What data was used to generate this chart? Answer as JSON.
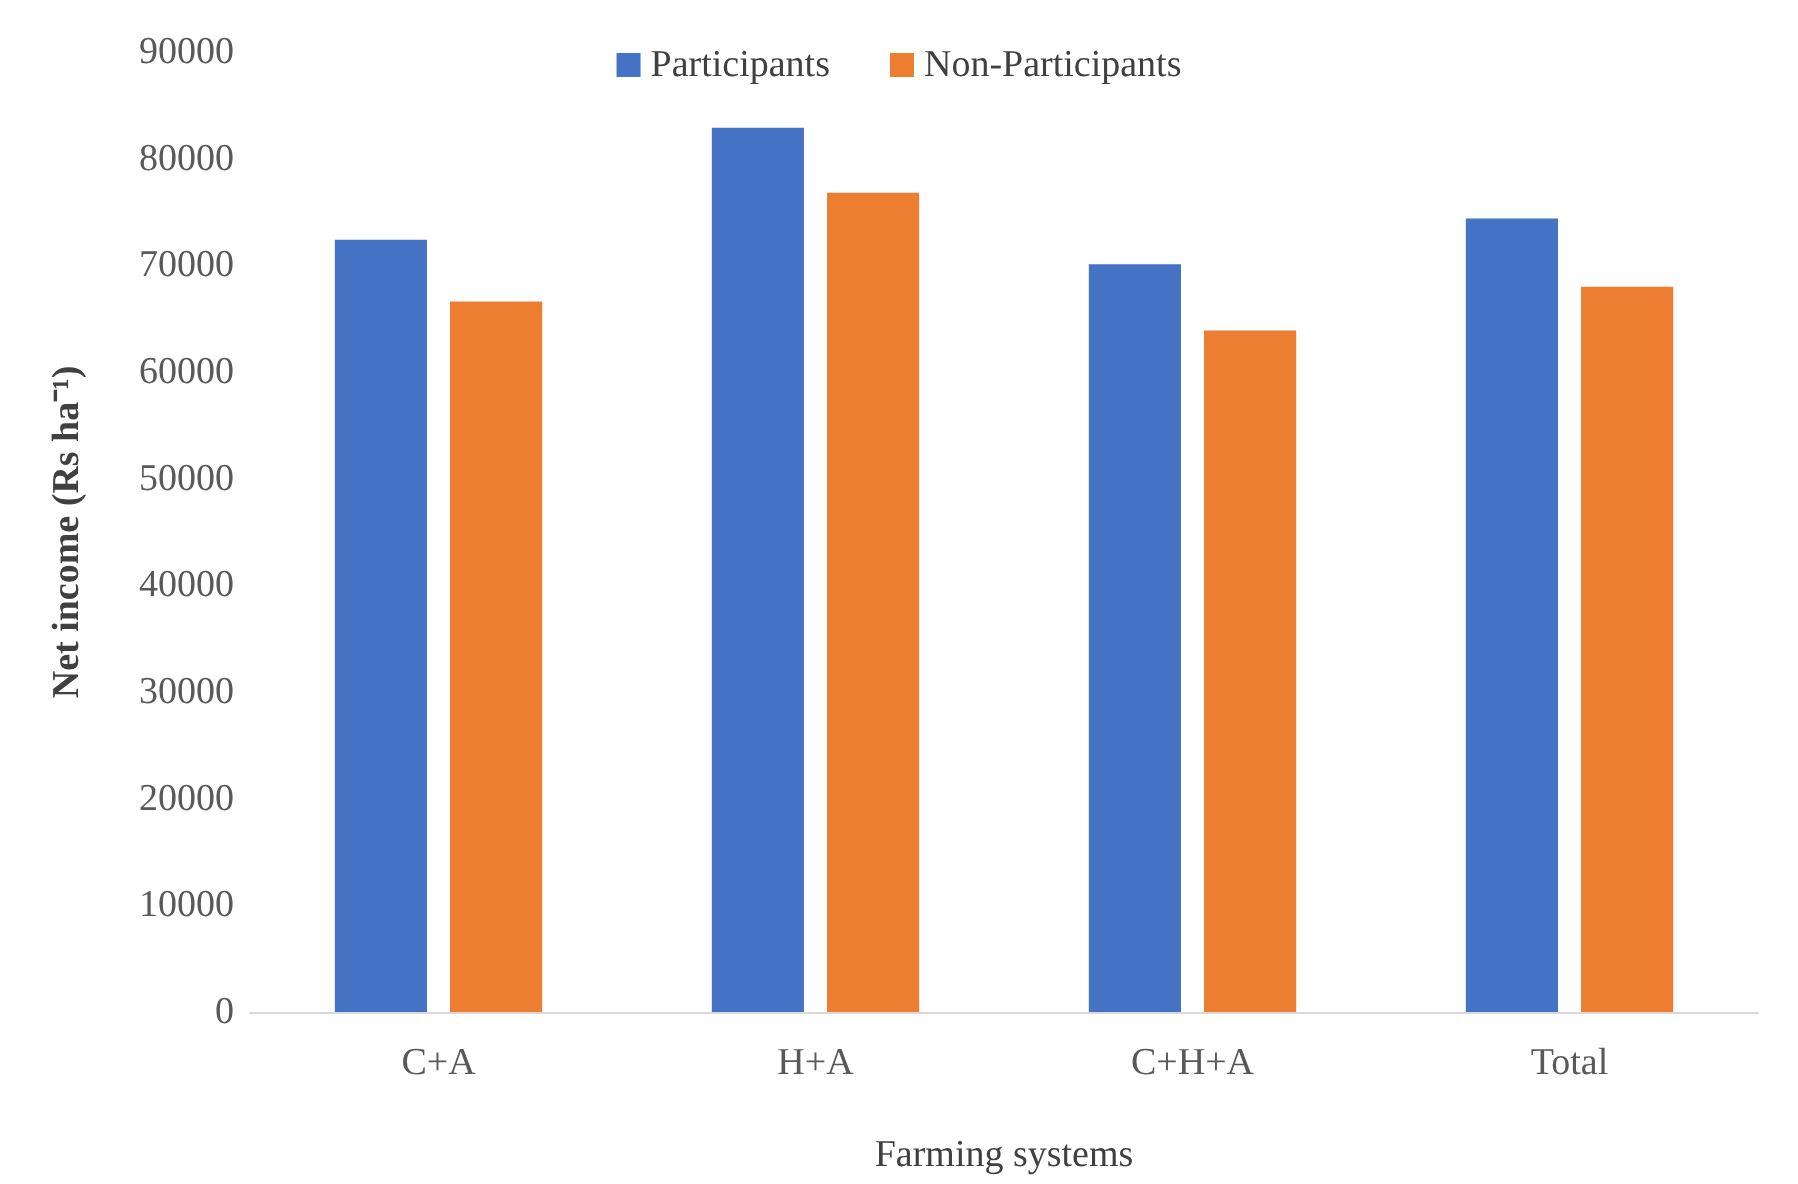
{
  "chart_data": {
    "type": "bar",
    "xlabel": "Farming systems",
    "ylabel": "Net income (Rs ha⁻¹)",
    "categories": [
      "C+A",
      "H+A",
      "C+H+A",
      "Total"
    ],
    "series": [
      {
        "name": "Participants",
        "color": "#4472c4",
        "values": [
          72400,
          82900,
          70100,
          74400
        ]
      },
      {
        "name": "Non-Participants",
        "color": "#ed7d31",
        "values": [
          66600,
          76800,
          63900,
          68000
        ]
      }
    ],
    "ylim": [
      0,
      90000
    ],
    "yticks": [
      0,
      10000,
      20000,
      30000,
      40000,
      50000,
      60000,
      70000,
      80000,
      90000
    ],
    "grid": false,
    "legend": "top"
  }
}
